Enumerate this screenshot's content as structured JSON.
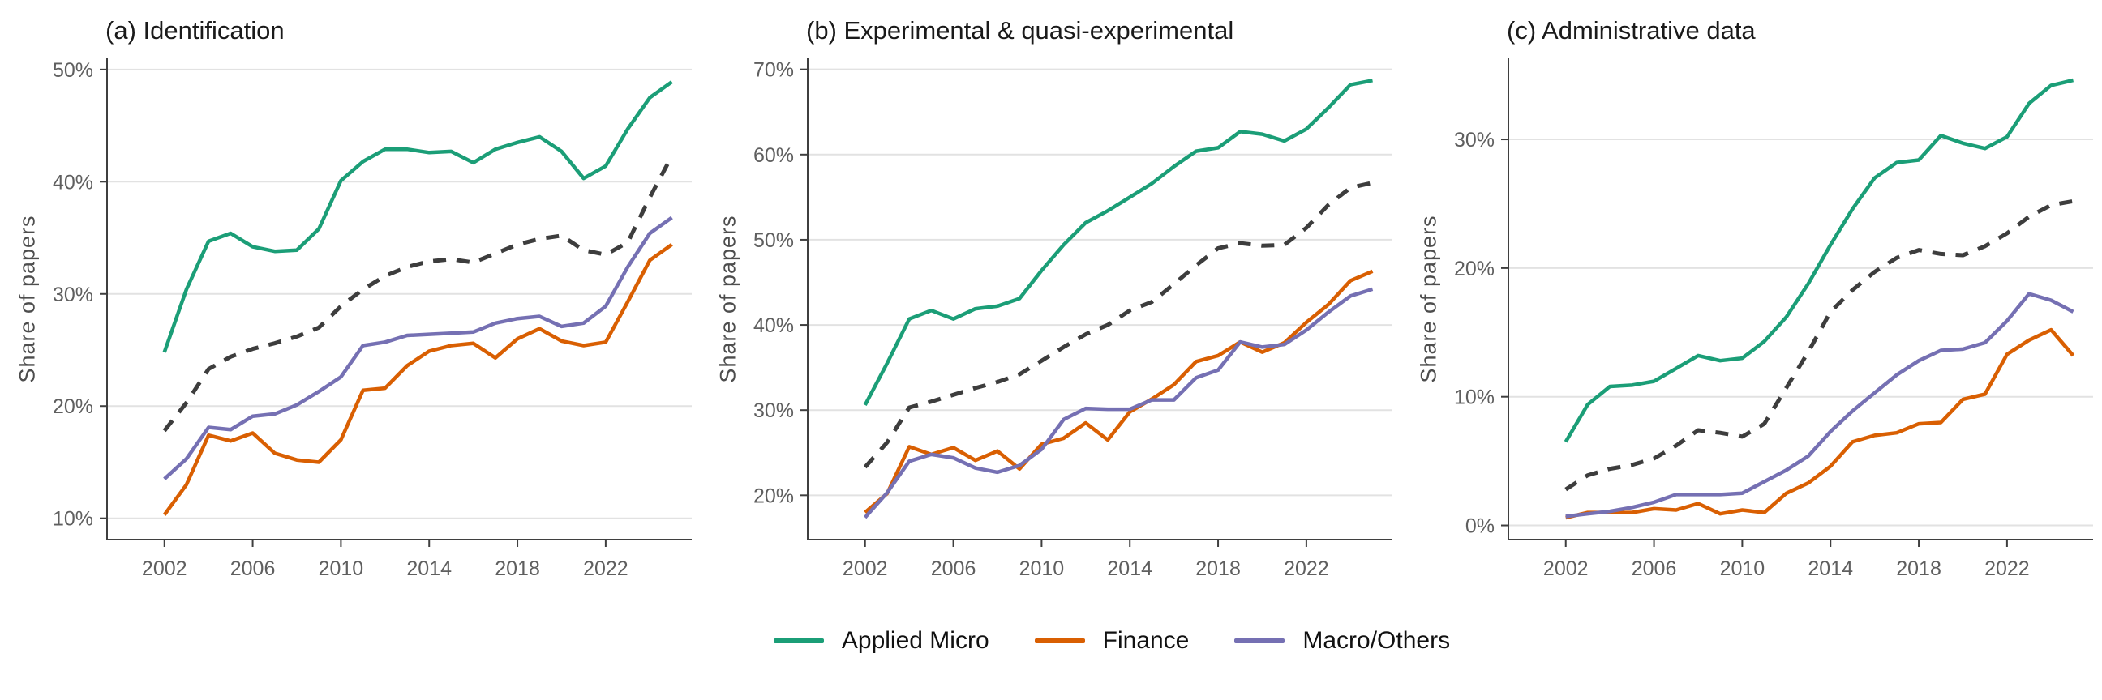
{
  "figure": {
    "y_axis_label": "Share of papers",
    "colors": {
      "applied_micro": "#1b9e77",
      "finance": "#d95f02",
      "macro_others": "#7570b3",
      "all_dashed": "#3d3d3d",
      "grid": "#e2e2e2",
      "axis": "#3f3f3f",
      "tick_label": "#5f5f5f"
    },
    "legend": [
      {
        "label": "Applied Micro",
        "color": "#1b9e77"
      },
      {
        "label": "Finance",
        "color": "#d95f02"
      },
      {
        "label": "Macro/Others",
        "color": "#7570b3"
      }
    ]
  },
  "chart_data": [
    {
      "type": "line",
      "title": "(a) Identification",
      "ylabel": "Share of papers",
      "x": [
        2002,
        2003,
        2004,
        2005,
        2006,
        2007,
        2008,
        2009,
        2010,
        2011,
        2012,
        2013,
        2014,
        2015,
        2016,
        2017,
        2018,
        2019,
        2020,
        2021,
        2022,
        2023,
        2024,
        2025
      ],
      "x_ticks": [
        2002,
        2006,
        2010,
        2014,
        2018,
        2022
      ],
      "y_ticks": [
        10,
        20,
        30,
        40,
        50
      ],
      "y_tick_suffix": "%",
      "xlim": [
        1999.4,
        2025.9
      ],
      "ylim": [
        8.1,
        51.0
      ],
      "grid": "horizontal",
      "legend_position": "bottom-shared",
      "series": [
        {
          "name": "Applied Micro",
          "color": "#1b9e77",
          "dash": null,
          "in_legend": true,
          "values": [
            24.8,
            30.4,
            34.7,
            35.4,
            34.2,
            33.8,
            33.9,
            35.8,
            40.1,
            41.8,
            42.9,
            42.9,
            42.6,
            42.7,
            41.7,
            42.9,
            43.5,
            44.0,
            42.7,
            40.3,
            41.4,
            44.7,
            47.5,
            48.9
          ]
        },
        {
          "name": "Finance",
          "color": "#d95f02",
          "dash": null,
          "in_legend": true,
          "values": [
            10.3,
            13.0,
            17.4,
            16.9,
            17.6,
            15.8,
            15.2,
            15.0,
            17.0,
            21.4,
            21.6,
            23.6,
            24.9,
            25.4,
            25.6,
            24.3,
            26.0,
            26.9,
            25.8,
            25.4,
            25.7,
            29.3,
            33.0,
            34.4
          ]
        },
        {
          "name": "Macro/Others",
          "color": "#7570b3",
          "dash": null,
          "in_legend": true,
          "values": [
            13.5,
            15.3,
            18.1,
            17.9,
            19.1,
            19.3,
            20.1,
            21.3,
            22.6,
            25.4,
            25.7,
            26.3,
            26.4,
            26.5,
            26.6,
            27.4,
            27.8,
            28.0,
            27.1,
            27.4,
            28.9,
            32.4,
            35.4,
            36.8
          ]
        },
        {
          "name": "All papers (unlabeled dashed)",
          "color": "#3d3d3d",
          "dash": "16 13",
          "in_legend": false,
          "values": [
            17.8,
            20.3,
            23.3,
            24.4,
            25.1,
            25.6,
            26.2,
            27.0,
            28.9,
            30.4,
            31.6,
            32.4,
            32.9,
            33.1,
            32.8,
            33.6,
            34.4,
            34.9,
            35.2,
            33.9,
            33.5,
            34.6,
            38.6,
            42.3
          ]
        }
      ]
    },
    {
      "type": "line",
      "title": "(b) Experimental & quasi-experimental",
      "ylabel": "Share of papers",
      "x": [
        2002,
        2003,
        2004,
        2005,
        2006,
        2007,
        2008,
        2009,
        2010,
        2011,
        2012,
        2013,
        2014,
        2015,
        2016,
        2017,
        2018,
        2019,
        2020,
        2021,
        2022,
        2023,
        2024,
        2025
      ],
      "x_ticks": [
        2002,
        2006,
        2010,
        2014,
        2018,
        2022
      ],
      "y_ticks": [
        20,
        30,
        40,
        50,
        60,
        70
      ],
      "y_tick_suffix": "%",
      "xlim": [
        1999.4,
        2025.9
      ],
      "ylim": [
        14.8,
        71.3
      ],
      "grid": "horizontal",
      "legend_position": "bottom-shared",
      "series": [
        {
          "name": "Applied Micro",
          "color": "#1b9e77",
          "dash": null,
          "in_legend": true,
          "values": [
            30.6,
            35.5,
            40.7,
            41.7,
            40.7,
            41.9,
            42.2,
            43.1,
            46.4,
            49.4,
            52.0,
            53.4,
            55.0,
            56.6,
            58.6,
            60.4,
            60.8,
            62.7,
            62.4,
            61.6,
            63.0,
            65.5,
            68.2,
            68.7
          ]
        },
        {
          "name": "Finance",
          "color": "#d95f02",
          "dash": null,
          "in_legend": true,
          "values": [
            18.0,
            20.2,
            25.7,
            24.8,
            25.6,
            24.1,
            25.2,
            23.1,
            26.0,
            26.7,
            28.5,
            26.5,
            29.8,
            31.3,
            33.0,
            35.7,
            36.4,
            38.0,
            36.8,
            37.9,
            40.3,
            42.4,
            45.2,
            46.3
          ]
        },
        {
          "name": "Macro/Others",
          "color": "#7570b3",
          "dash": null,
          "in_legend": true,
          "values": [
            17.4,
            20.3,
            24.0,
            24.8,
            24.4,
            23.2,
            22.7,
            23.5,
            25.4,
            28.9,
            30.2,
            30.1,
            30.1,
            31.2,
            31.2,
            33.8,
            34.7,
            38.0,
            37.4,
            37.7,
            39.4,
            41.5,
            43.4,
            44.2
          ]
        },
        {
          "name": "All papers (unlabeled dashed)",
          "color": "#3d3d3d",
          "dash": "16 13",
          "in_legend": false,
          "values": [
            23.3,
            26.2,
            30.3,
            31.0,
            31.8,
            32.6,
            33.3,
            34.2,
            35.8,
            37.4,
            38.9,
            40.0,
            41.7,
            42.7,
            44.8,
            47.0,
            49.0,
            49.6,
            49.3,
            49.4,
            51.4,
            54.1,
            56.1,
            56.7
          ]
        }
      ]
    },
    {
      "type": "line",
      "title": "(c) Administrative data",
      "ylabel": "Share of papers",
      "x": [
        2002,
        2003,
        2004,
        2005,
        2006,
        2007,
        2008,
        2009,
        2010,
        2011,
        2012,
        2013,
        2014,
        2015,
        2016,
        2017,
        2018,
        2019,
        2020,
        2021,
        2022,
        2023,
        2024,
        2025
      ],
      "x_ticks": [
        2002,
        2006,
        2010,
        2014,
        2018,
        2022
      ],
      "y_ticks": [
        0,
        10,
        20,
        30
      ],
      "y_tick_suffix": "%",
      "xlim": [
        1999.4,
        2025.9
      ],
      "ylim": [
        -1.1,
        36.3
      ],
      "grid": "horizontal",
      "legend_position": "bottom-shared",
      "series": [
        {
          "name": "Applied Micro",
          "color": "#1b9e77",
          "dash": null,
          "in_legend": true,
          "values": [
            6.5,
            9.4,
            10.8,
            10.9,
            11.2,
            12.2,
            13.2,
            12.8,
            13.0,
            14.3,
            16.2,
            18.8,
            21.8,
            24.6,
            27.0,
            28.2,
            28.4,
            30.3,
            29.7,
            29.3,
            30.2,
            32.8,
            34.2,
            34.6
          ]
        },
        {
          "name": "Finance",
          "color": "#d95f02",
          "dash": null,
          "in_legend": true,
          "values": [
            0.6,
            1.0,
            1.0,
            1.0,
            1.3,
            1.2,
            1.7,
            0.9,
            1.2,
            1.0,
            2.5,
            3.3,
            4.6,
            6.5,
            7.0,
            7.2,
            7.9,
            8.0,
            9.8,
            10.2,
            13.3,
            14.4,
            15.2,
            13.2
          ]
        },
        {
          "name": "Macro/Others",
          "color": "#7570b3",
          "dash": null,
          "in_legend": true,
          "values": [
            0.7,
            0.9,
            1.1,
            1.4,
            1.8,
            2.4,
            2.4,
            2.4,
            2.5,
            3.4,
            4.3,
            5.4,
            7.3,
            8.9,
            10.3,
            11.7,
            12.8,
            13.6,
            13.7,
            14.2,
            15.9,
            18.0,
            17.5,
            16.6
          ]
        },
        {
          "name": "All papers (unlabeled dashed)",
          "color": "#3d3d3d",
          "dash": "16 13",
          "in_legend": false,
          "values": [
            2.8,
            3.9,
            4.4,
            4.7,
            5.2,
            6.2,
            7.4,
            7.2,
            6.9,
            7.9,
            10.7,
            13.5,
            16.6,
            18.3,
            19.7,
            20.8,
            21.4,
            21.1,
            21.0,
            21.7,
            22.7,
            24.0,
            24.9,
            25.2
          ]
        }
      ]
    }
  ]
}
